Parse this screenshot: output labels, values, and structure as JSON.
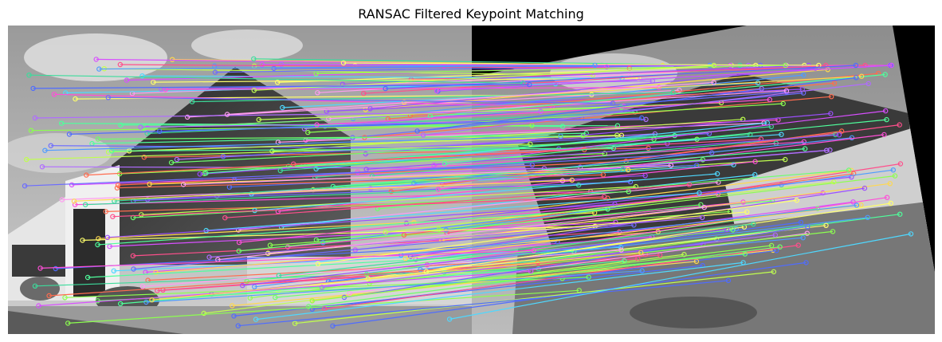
{
  "figure": {
    "title": "RANSAC Filtered Keypoint Matching",
    "left_image": {
      "description": "Grayscale photo of office building with glass atrium"
    },
    "right_image": {
      "description": "Rotated grayscale photo of same building on black background"
    }
  },
  "palette": [
    "#ff4fd8",
    "#6cff6c",
    "#4f6cff",
    "#ffd84f",
    "#4fd8ff",
    "#d84fff",
    "#ff6c4f",
    "#8cff4f",
    "#4fff9c",
    "#ff4f8c",
    "#9c4fff",
    "#4f9cff",
    "#ffff6c",
    "#6c6cff",
    "#c0ff4f",
    "#ff9cf0",
    "#3cdc9c",
    "#b06cff"
  ],
  "match_count": 220
}
